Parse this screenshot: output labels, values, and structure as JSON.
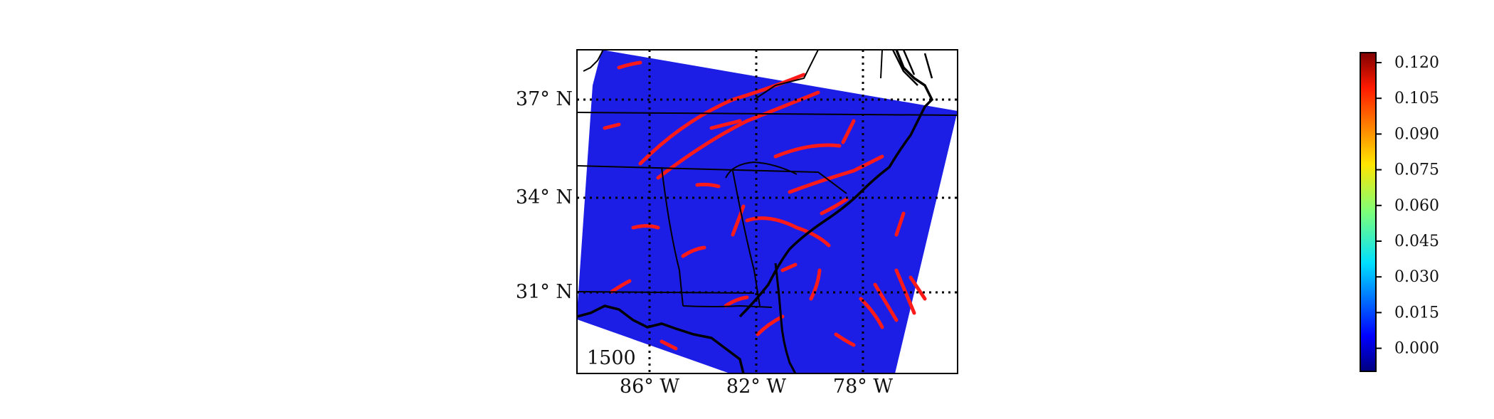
{
  "map": {
    "frame_label": "1500",
    "lat_labels": [
      "37° N",
      "34° N",
      "31° N"
    ],
    "lon_labels": [
      "86° W",
      "82° W",
      "78° W"
    ],
    "field_color": "#1c1ee6",
    "feature_color": "#ff1a1a",
    "coast_color": "#000000",
    "grid_style": "dotted"
  },
  "colorbar": {
    "colormap": "jet",
    "ticks": [
      "0.120",
      "0.105",
      "0.090",
      "0.075",
      "0.060",
      "0.045",
      "0.030",
      "0.015",
      "0.000"
    ]
  }
}
